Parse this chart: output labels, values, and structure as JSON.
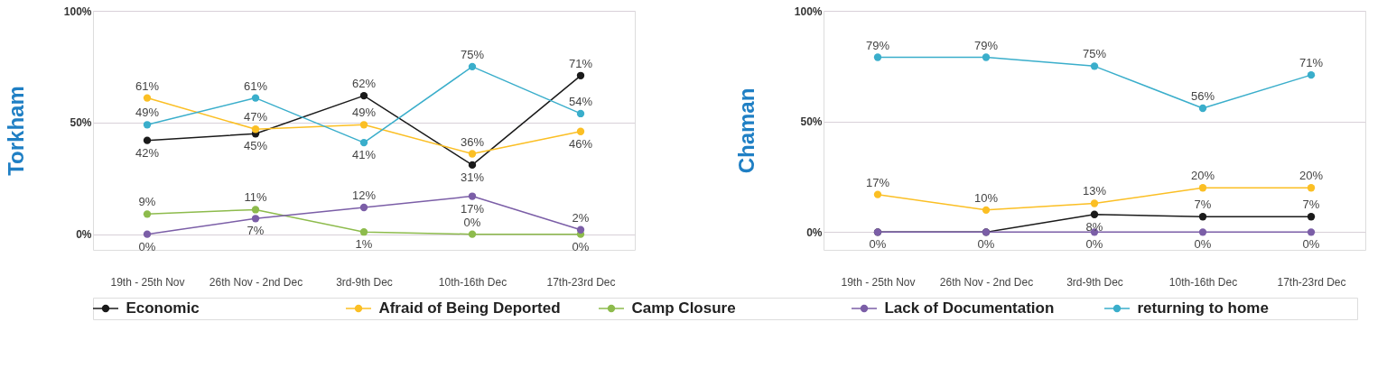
{
  "chart_data": [
    {
      "type": "line",
      "ylabel": "Torkham",
      "categories": [
        "19th - 25th Nov",
        "26th Nov - 2nd Dec",
        "3rd-9th Dec",
        "10th-16th Dec",
        "17th-23rd Dec"
      ],
      "ylim": [
        -7,
        100
      ],
      "yticks": [
        {
          "value": 0,
          "label": "0%"
        },
        {
          "value": 50,
          "label": "50%"
        },
        {
          "value": 100,
          "label": "100%"
        }
      ],
      "grid": "y",
      "legend": "bottom",
      "marker": "circle",
      "line_style": "solid",
      "series": [
        {
          "name": "Economic",
          "color": "#1a1a1a",
          "values": [
            42,
            45,
            62,
            31,
            71
          ],
          "value_labels": [
            "42%",
            "45%",
            "62%",
            "31%",
            "71%"
          ]
        },
        {
          "name": "Afraid of Being Deported",
          "color": "#fbbf24",
          "values": [
            61,
            47,
            49,
            36,
            46
          ],
          "value_labels": [
            "61%",
            "47%",
            "49%",
            "36%",
            "46%"
          ]
        },
        {
          "name": "Camp Closure",
          "color": "#8dbb4c",
          "values": [
            9,
            11,
            1,
            0,
            0
          ],
          "value_labels": [
            "9%",
            "11%",
            "1%",
            "0%",
            "0%"
          ]
        },
        {
          "name": "Lack of Documentation",
          "color": "#7b5ea7",
          "values": [
            0,
            7,
            12,
            17,
            2
          ],
          "value_labels": [
            "0%",
            "7%",
            "12%",
            "17%",
            "2%"
          ]
        },
        {
          "name": "returning to home",
          "color": "#3aaecb",
          "values": [
            49,
            61,
            41,
            75,
            54
          ],
          "value_labels": [
            "49%",
            "61%",
            "41%",
            "75%",
            "54%"
          ]
        }
      ]
    },
    {
      "type": "line",
      "ylabel": "Chaman",
      "categories": [
        "19th - 25th Nov",
        "26th Nov - 2nd Dec",
        "3rd-9th Dec",
        "10th-16th Dec",
        "17th-23rd Dec"
      ],
      "ylim": [
        -8,
        100
      ],
      "yticks": [
        {
          "value": 0,
          "label": "0%"
        },
        {
          "value": 50,
          "label": "50%"
        },
        {
          "value": 100,
          "label": "100%"
        }
      ],
      "grid": "y",
      "legend": "bottom",
      "marker": "circle",
      "line_style": "solid",
      "series": [
        {
          "name": "Economic",
          "color": "#1a1a1a",
          "values": [
            0,
            0,
            8,
            7,
            7
          ],
          "value_labels": [
            null,
            null,
            "8%",
            "7%",
            "7%"
          ]
        },
        {
          "name": "Afraid of Being Deported",
          "color": "#fbbf24",
          "values": [
            17,
            10,
            13,
            20,
            20
          ],
          "value_labels": [
            "17%",
            "10%",
            "13%",
            "20%",
            "20%"
          ]
        },
        {
          "name": "Lack of Documentation",
          "color": "#7b5ea7",
          "values": [
            0,
            0,
            0,
            0,
            0
          ],
          "value_labels": [
            "0%",
            "0%",
            "0%",
            "0%",
            "0%"
          ]
        },
        {
          "name": "returning to home",
          "color": "#3aaecb",
          "values": [
            79,
            79,
            75,
            56,
            71
          ],
          "value_labels": [
            "79%",
            "79%",
            "75%",
            "56%",
            "71%"
          ]
        }
      ]
    }
  ]
}
